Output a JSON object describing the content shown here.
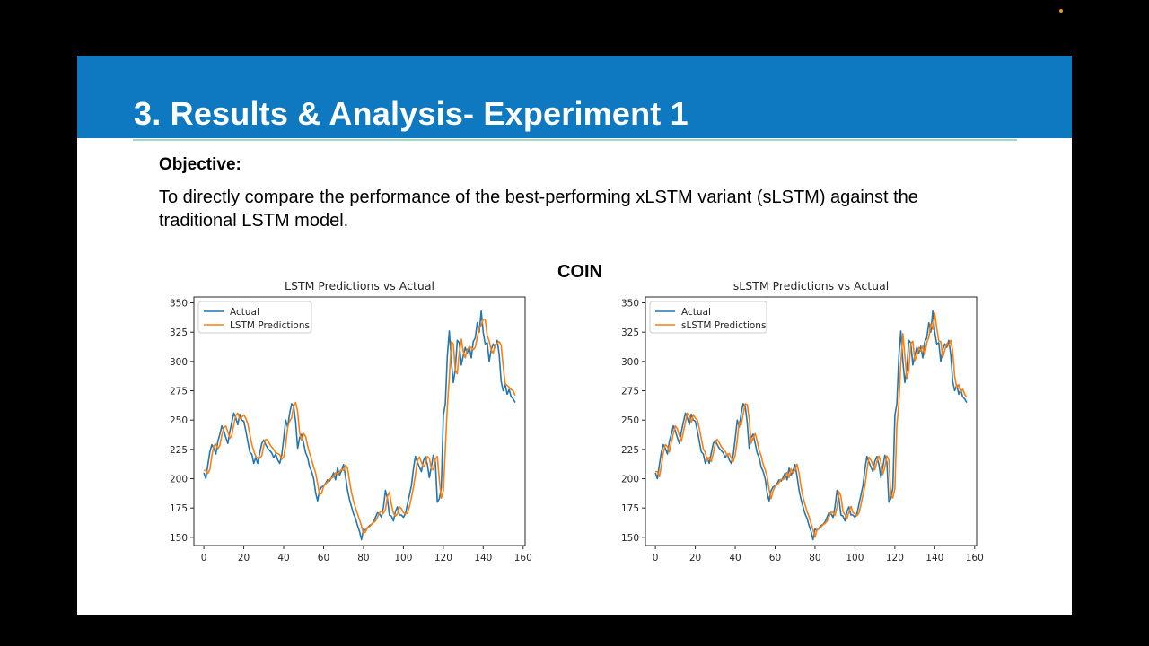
{
  "slide": {
    "title": "3. Results & Analysis- Experiment 1",
    "objective_label": "Objective:",
    "objective_text": "To directly compare the performance of the best-performing xLSTM variant (sLSTM) against the traditional LSTM model.",
    "dataset_label": "COIN",
    "colors": {
      "header": "#0e79c1",
      "rule": "#9fd6c6",
      "actual": "#1f77b4",
      "predicted": "#ff7f0e"
    }
  },
  "chart_data": [
    {
      "type": "line",
      "title": "LSTM Predictions vs Actual",
      "xlabel": "",
      "ylabel": "",
      "xlim": [
        -5,
        161
      ],
      "ylim": [
        143,
        355
      ],
      "xticks": [
        0,
        20,
        40,
        60,
        80,
        100,
        120,
        140,
        160
      ],
      "yticks": [
        150,
        175,
        200,
        225,
        250,
        275,
        300,
        325,
        350
      ],
      "legend": "top-left",
      "grid": false,
      "series": [
        {
          "name": "Actual",
          "shift": 0,
          "values": [
            205,
            200,
            212,
            223,
            229,
            226,
            221,
            232,
            238,
            245,
            241,
            235,
            230,
            240,
            248,
            256,
            252,
            246,
            255,
            250,
            249,
            241,
            232,
            223,
            221,
            213,
            218,
            213,
            222,
            230,
            233,
            229,
            226,
            224,
            222,
            218,
            221,
            216,
            213,
            220,
            234,
            250,
            244,
            256,
            264,
            262,
            248,
            226,
            235,
            238,
            230,
            222,
            218,
            210,
            206,
            200,
            188,
            181,
            190,
            193,
            194,
            196,
            199,
            198,
            201,
            205,
            199,
            209,
            203,
            207,
            212,
            202,
            190,
            182,
            176,
            170,
            166,
            160,
            155,
            148,
            157,
            156,
            158,
            160,
            161,
            163,
            167,
            171,
            170,
            167,
            176,
            190,
            183,
            169,
            168,
            164,
            172,
            176,
            169,
            169,
            167,
            170,
            178,
            186,
            194,
            208,
            219,
            214,
            210,
            206,
            215,
            219,
            212,
            201,
            210,
            220,
            214,
            180,
            183,
            192,
            254,
            264,
            304,
            326,
            300,
            282,
            293,
            318,
            316,
            297,
            305,
            312,
            307,
            313,
            303,
            317,
            320,
            333,
            325,
            343,
            325,
            315,
            316,
            300,
            310,
            315,
            312,
            318,
            306,
            283,
            275,
            280,
            272,
            276,
            270,
            268,
            265
          ]
        },
        {
          "name": "LSTM Predictions",
          "shift": 1,
          "smooth": 0.5,
          "offset": 2
        }
      ]
    },
    {
      "type": "line",
      "title": "sLSTM Predictions vs Actual",
      "xlabel": "",
      "ylabel": "",
      "xlim": [
        -5,
        161
      ],
      "ylim": [
        143,
        355
      ],
      "xticks": [
        0,
        20,
        40,
        60,
        80,
        100,
        120,
        140,
        160
      ],
      "yticks": [
        150,
        175,
        200,
        225,
        250,
        275,
        300,
        325,
        350
      ],
      "legend": "top-left",
      "grid": false,
      "series": [
        {
          "name": "Actual",
          "shift": 0,
          "values": [
            205,
            200,
            212,
            223,
            229,
            226,
            221,
            232,
            238,
            245,
            241,
            235,
            230,
            240,
            248,
            256,
            252,
            246,
            255,
            250,
            249,
            241,
            232,
            223,
            221,
            213,
            218,
            213,
            222,
            230,
            233,
            229,
            226,
            224,
            222,
            218,
            221,
            216,
            213,
            220,
            234,
            250,
            244,
            256,
            264,
            262,
            248,
            226,
            235,
            238,
            230,
            222,
            218,
            210,
            206,
            200,
            188,
            181,
            190,
            193,
            194,
            196,
            199,
            198,
            201,
            205,
            199,
            209,
            203,
            207,
            212,
            202,
            190,
            182,
            176,
            170,
            166,
            160,
            155,
            148,
            157,
            156,
            158,
            160,
            161,
            163,
            167,
            171,
            170,
            167,
            176,
            190,
            183,
            169,
            168,
            164,
            172,
            176,
            169,
            169,
            167,
            170,
            178,
            186,
            194,
            208,
            219,
            214,
            210,
            206,
            215,
            219,
            212,
            201,
            210,
            220,
            214,
            180,
            183,
            192,
            254,
            264,
            304,
            326,
            300,
            282,
            293,
            318,
            316,
            297,
            305,
            312,
            307,
            313,
            303,
            317,
            320,
            333,
            325,
            343,
            325,
            315,
            316,
            300,
            310,
            315,
            312,
            318,
            306,
            283,
            275,
            280,
            272,
            276,
            270,
            268,
            265
          ]
        },
        {
          "name": "sLSTM Predictions",
          "shift": 1,
          "smooth": 0.15,
          "offset": 1
        }
      ]
    }
  ]
}
